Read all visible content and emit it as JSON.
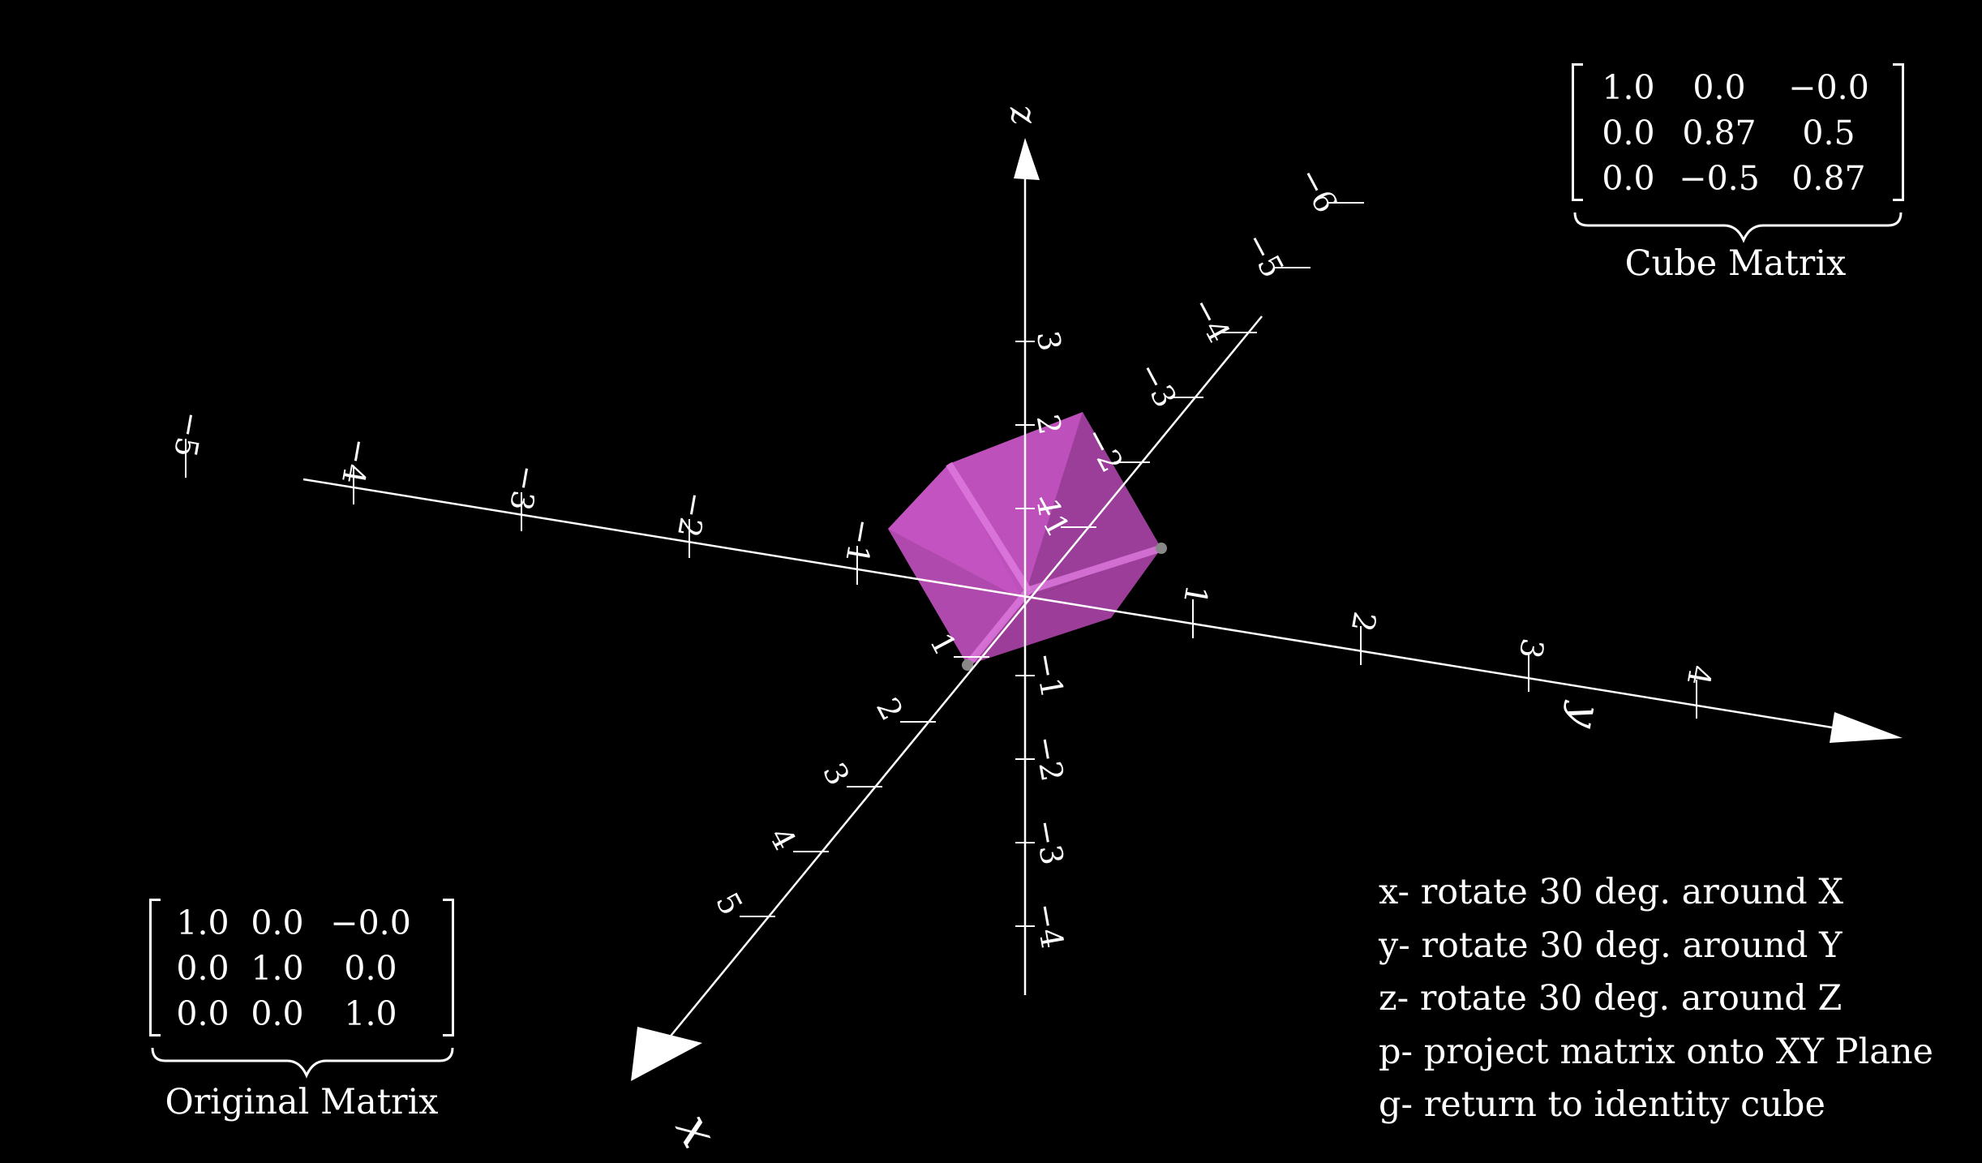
{
  "cube_matrix": {
    "rows": [
      [
        "1.0",
        "0.0",
        "−0.0"
      ],
      [
        "0.0",
        "0.87",
        "0.5"
      ],
      [
        "0.0",
        "−0.5",
        "0.87"
      ]
    ],
    "caption": "Cube Matrix"
  },
  "original_matrix": {
    "rows": [
      [
        "1.0",
        "0.0",
        "−0.0"
      ],
      [
        "0.0",
        "1.0",
        "0.0"
      ],
      [
        "0.0",
        "0.0",
        "1.0"
      ]
    ],
    "caption": "Original Matrix"
  },
  "axes": {
    "x_label": "x",
    "y_label": "y",
    "z_label": "z",
    "x_pos_ticks": [
      "1",
      "2",
      "3",
      "4",
      "5"
    ],
    "x_neg_ticks": [
      "−1",
      "−2",
      "−3",
      "−4",
      "−5",
      "−6"
    ],
    "y_pos_ticks": [
      "1",
      "2",
      "3",
      "4"
    ],
    "y_neg_ticks": [
      "−1",
      "−2",
      "−3",
      "−4",
      "−5"
    ],
    "z_pos_ticks": [
      "1",
      "2",
      "3"
    ],
    "z_neg_ticks": [
      "−1",
      "−2",
      "−3",
      "−4"
    ]
  },
  "cube_color": "#d65fd2",
  "key_bindings": [
    "x- rotate 30 deg. around X",
    "y- rotate 30 deg. around Y",
    "z- rotate 30 deg. around Z",
    "p- project matrix onto XY Plane",
    "g- return to identity cube"
  ]
}
